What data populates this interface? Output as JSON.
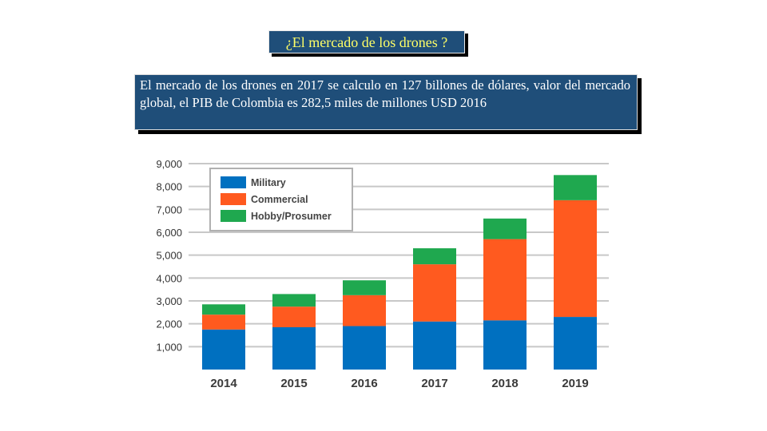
{
  "header": {
    "title": "¿El mercado de los drones ?",
    "description": "El mercado de los drones en 2017 se calculo en 127 billones de dólares, valor del mercado global, el PIB de Colombia es  282,5 miles de millones USD 2016"
  },
  "chart_data": {
    "type": "bar",
    "stacked": true,
    "categories": [
      "2014",
      "2015",
      "2016",
      "2017",
      "2018",
      "2019"
    ],
    "series": [
      {
        "name": "Military",
        "color": "#0070c0",
        "values": [
          1750,
          1850,
          1900,
          2100,
          2150,
          2300
        ]
      },
      {
        "name": "Commercial",
        "color": "#ff5a1f",
        "values": [
          650,
          900,
          1350,
          2500,
          3550,
          5100
        ]
      },
      {
        "name": "Hobby/Prosumer",
        "color": "#1fa84f",
        "values": [
          450,
          550,
          650,
          700,
          900,
          1100
        ]
      }
    ],
    "yticks": [
      "1,000",
      "2,000",
      "3,000",
      "4,000",
      "5,000",
      "6,000",
      "7,000",
      "8,000",
      "9,000"
    ],
    "ylim": [
      0,
      9000
    ],
    "legend_position": "top-left",
    "grid": true
  }
}
